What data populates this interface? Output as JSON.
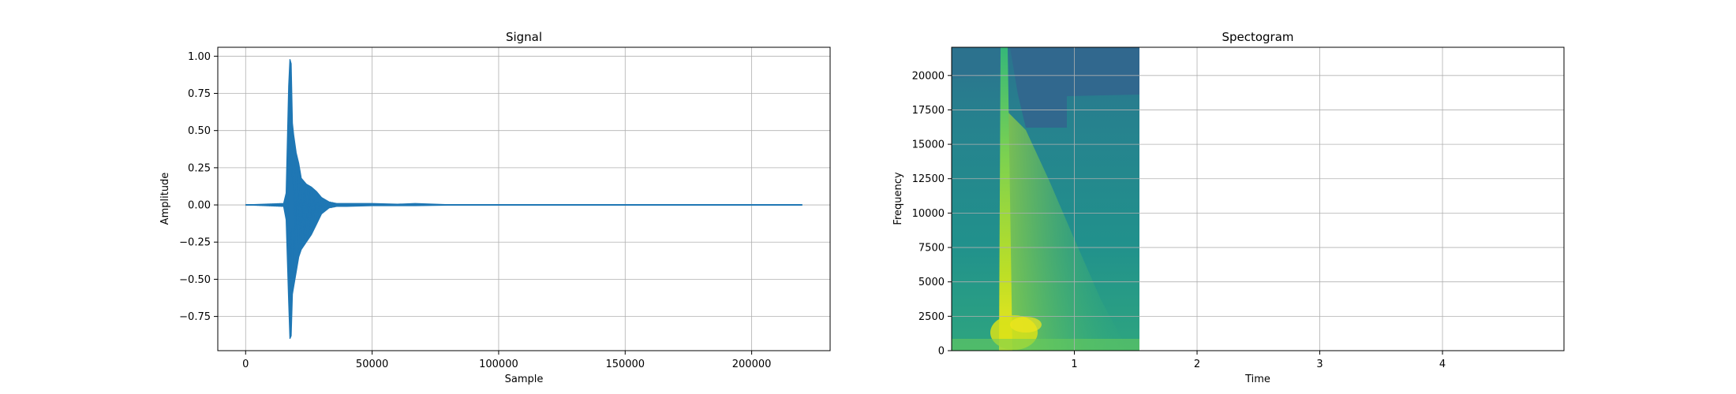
{
  "chart_data": [
    {
      "type": "line",
      "title": "Signal",
      "xlabel": "Sample",
      "ylabel": "Amplitude",
      "xlim": [
        -11000,
        231000
      ],
      "ylim": [
        -0.98,
        1.06
      ],
      "grid": true,
      "xticks": [
        0,
        50000,
        100000,
        150000,
        200000
      ],
      "xtick_labels": [
        "0",
        "50000",
        "100000",
        "150000",
        "200000"
      ],
      "yticks": [
        -0.75,
        -0.5,
        -0.25,
        0.0,
        0.25,
        0.5,
        0.75,
        1.0
      ],
      "ytick_labels": [
        "−0.75",
        "−0.50",
        "−0.25",
        "0.00",
        "0.25",
        "0.50",
        "0.75",
        "1.00"
      ],
      "color": "#1f77b4",
      "series": [
        {
          "x": [
            0,
            15000,
            16000,
            17000,
            17500,
            18000,
            18500,
            19000,
            20000,
            21000,
            22000,
            24000,
            26000,
            28000,
            30000,
            33000,
            36000,
            40000,
            50000,
            60000,
            67000,
            80000,
            100000,
            150000,
            200000,
            220000
          ],
          "y_max": [
            0.0,
            0.01,
            0.08,
            0.8,
            0.98,
            0.95,
            0.55,
            0.47,
            0.35,
            0.28,
            0.18,
            0.14,
            0.12,
            0.09,
            0.05,
            0.02,
            0.01,
            0.01,
            0.01,
            0.005,
            0.01,
            0.002,
            0.0,
            0.0,
            0.0,
            0.0
          ],
          "y_min": [
            0.0,
            -0.01,
            -0.1,
            -0.65,
            -0.9,
            -0.88,
            -0.6,
            -0.55,
            -0.45,
            -0.35,
            -0.3,
            -0.25,
            -0.2,
            -0.13,
            -0.06,
            -0.02,
            -0.01,
            -0.01,
            -0.005,
            -0.005,
            -0.005,
            -0.002,
            0.0,
            0.0,
            0.0,
            0.0
          ]
        }
      ]
    },
    {
      "type": "heatmap",
      "title": "Spectogram",
      "xlabel": "Time",
      "ylabel": "Frequency",
      "xlim": [
        0,
        4.99
      ],
      "ylim": [
        0,
        22050
      ],
      "grid": true,
      "xticks": [
        1,
        2,
        3,
        4
      ],
      "xtick_labels": [
        "1",
        "2",
        "3",
        "4"
      ],
      "yticks": [
        0,
        2500,
        5000,
        7500,
        10000,
        12500,
        15000,
        17500,
        20000
      ],
      "ytick_labels": [
        "0",
        "2500",
        "5000",
        "7500",
        "10000",
        "12500",
        "15000",
        "17500",
        "20000"
      ],
      "data_extent_time": [
        0,
        1.53
      ],
      "colormap": "viridis",
      "low_color": "#3b528b",
      "mid_color": "#21918c",
      "high_color": "#bddf26",
      "peak_color": "#f1e51d",
      "onset_time": 0.42
    }
  ]
}
